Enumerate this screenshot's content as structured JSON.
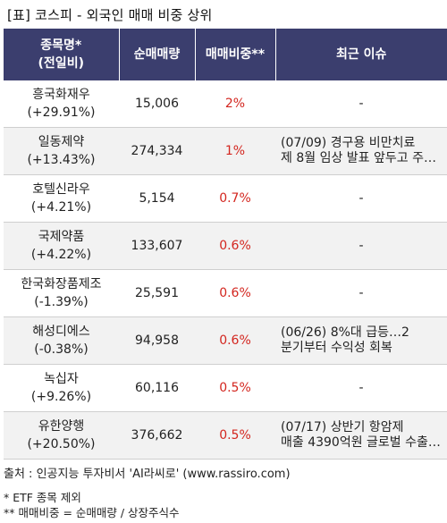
{
  "title": "[표] 코스피 - 외국인 매매 비중 상위",
  "headers": {
    "name_line1": "종목명*",
    "name_line2": "(전일비)",
    "volume": "순매매량",
    "ratio": "매매비중**",
    "issue": "최근 이슈"
  },
  "rows": [
    {
      "name": "흥국화재우",
      "change": "(+29.91%)",
      "volume": "15,006",
      "ratio": "2%",
      "issue1": "-",
      "issue2": ""
    },
    {
      "name": "일동제약",
      "change": "(+13.43%)",
      "volume": "274,334",
      "ratio": "1%",
      "issue1": "(07/09) 경구용 비만치료",
      "issue2": "제 8월 임상 발표 앞두고 주…"
    },
    {
      "name": "호텔신라우",
      "change": "(+4.21%)",
      "volume": "5,154",
      "ratio": "0.7%",
      "issue1": "-",
      "issue2": ""
    },
    {
      "name": "국제약품",
      "change": "(+4.22%)",
      "volume": "133,607",
      "ratio": "0.6%",
      "issue1": "-",
      "issue2": ""
    },
    {
      "name": "한국화장품제조",
      "change": "(-1.39%)",
      "volume": "25,591",
      "ratio": "0.6%",
      "issue1": "-",
      "issue2": ""
    },
    {
      "name": "해성디에스",
      "change": "(-0.38%)",
      "volume": "94,958",
      "ratio": "0.6%",
      "issue1": "(06/26) 8%대 급등…2",
      "issue2": "분기부터 수익성 회복"
    },
    {
      "name": "녹십자",
      "change": "(+9.26%)",
      "volume": "60,116",
      "ratio": "0.5%",
      "issue1": "-",
      "issue2": ""
    },
    {
      "name": "유한양행",
      "change": "(+20.50%)",
      "volume": "376,662",
      "ratio": "0.5%",
      "issue1": "(07/17) 상반기 항암제",
      "issue2": "매출 4390억원 글로벌 수출…"
    }
  ],
  "source": "출처 : 인공지능 투자비서 'AI라씨로' (www.rassiro.com)",
  "note1": "* ETF 종목 제외",
  "note2": "** 매매비중 = 순매매량 / 상장주식수",
  "colors": {
    "header_bg": "#3b3e6e",
    "ratio_text": "#d3261f",
    "row_shade": "#f2f2f2"
  }
}
